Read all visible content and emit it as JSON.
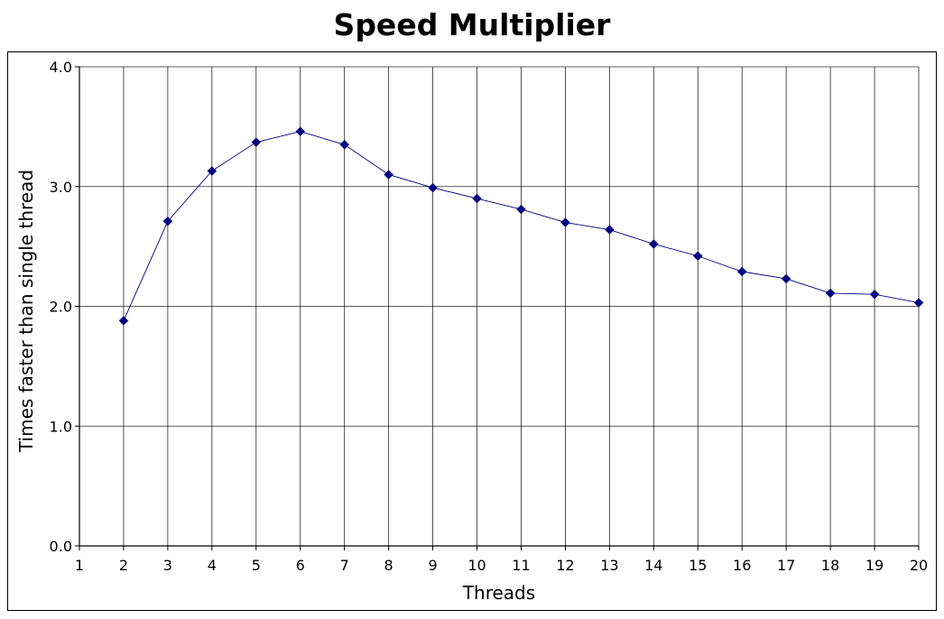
{
  "chart_data": {
    "type": "line",
    "title": "Speed Multiplier",
    "xlabel": "Threads",
    "ylabel": "Times faster than single thread",
    "xlim": [
      1,
      20
    ],
    "ylim": [
      0,
      4
    ],
    "x_ticks": [
      "1",
      "2",
      "3",
      "4",
      "5",
      "6",
      "7",
      "8",
      "9",
      "10",
      "11",
      "12",
      "13",
      "14",
      "15",
      "16",
      "17",
      "18",
      "19",
      "20"
    ],
    "y_ticks": [
      "0.0",
      "1.0",
      "2.0",
      "3.0",
      "4.0"
    ],
    "grid": true,
    "legend": "none",
    "line_color": "#000080",
    "marker": "diamond",
    "series": [
      {
        "x": [
          2,
          3,
          4,
          5,
          6,
          7,
          8,
          9,
          10,
          11,
          12,
          13,
          14,
          15,
          16,
          17,
          18,
          19,
          20
        ],
        "values": [
          1.88,
          2.71,
          3.13,
          3.37,
          3.46,
          3.35,
          3.1,
          2.99,
          2.9,
          2.81,
          2.7,
          2.64,
          2.52,
          2.42,
          2.29,
          2.23,
          2.11,
          2.1,
          2.03
        ]
      }
    ]
  }
}
